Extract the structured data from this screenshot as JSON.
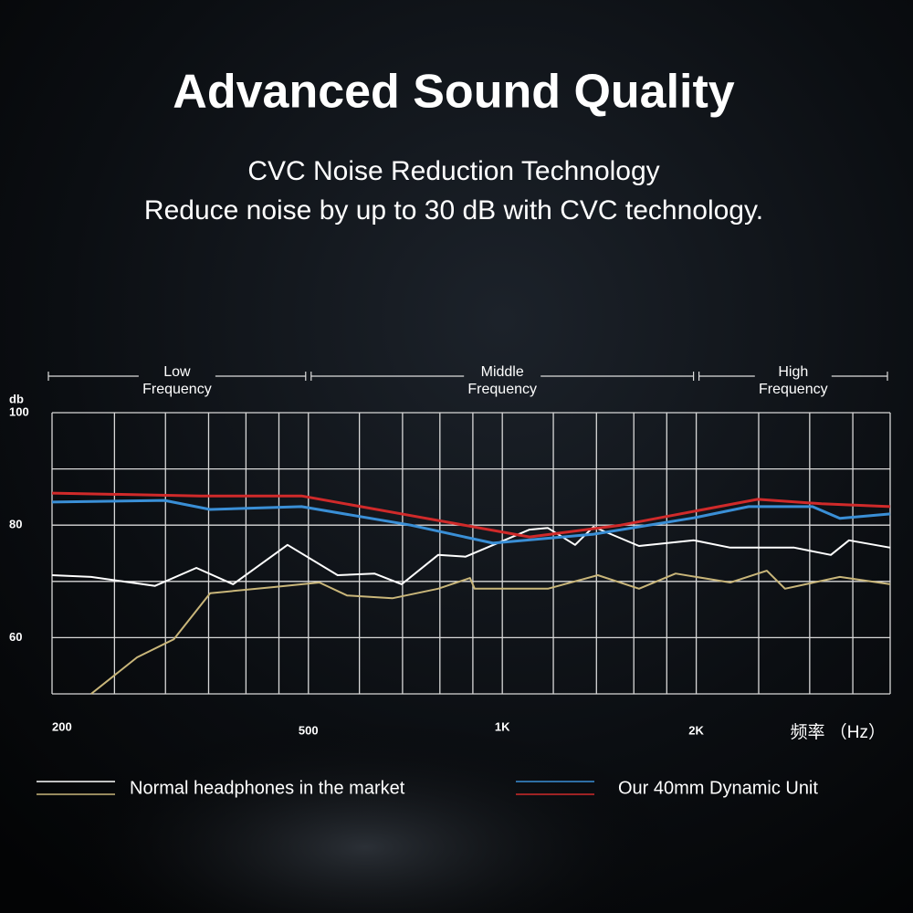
{
  "chart_data": {
    "type": "line",
    "title": "Advanced Sound Quality",
    "subtitle": [
      "CVC Noise Reduction Technology",
      "Reduce noise by up to 30 dB with CVC technology."
    ],
    "y_label": "db",
    "x_label": "频率 （Hz）",
    "log_x": true,
    "xlim": [
      200,
      4000
    ],
    "xticks": [
      200,
      500,
      {
        "value": 1000,
        "label": "1K"
      },
      {
        "value": 2000,
        "label": "2K"
      }
    ],
    "xgrid": [
      200,
      250,
      300,
      350,
      400,
      450,
      500,
      600,
      700,
      800,
      900,
      1000,
      1200,
      1400,
      1600,
      1800,
      2000,
      2500,
      3000,
      3500,
      4000
    ],
    "ylim": [
      50,
      100
    ],
    "yticks": [
      100,
      80,
      60
    ],
    "ygrid": [
      50,
      60,
      70,
      80,
      90,
      100
    ],
    "grid": true,
    "bands": [
      {
        "label": [
          "Low",
          "Frequency"
        ],
        "range": [
          200,
          500
        ]
      },
      {
        "label": [
          "Middle",
          "Frequency"
        ],
        "range": [
          500,
          2000
        ]
      },
      {
        "label": [
          "High",
          "Frequency"
        ],
        "range": [
          2000,
          4000
        ]
      }
    ],
    "series": [
      {
        "color": "#ffffff",
        "x": [
          200,
          230,
          289,
          335,
          382,
          464,
          555,
          633,
          698,
          795,
          877,
          1102,
          1177,
          1297,
          1385,
          1630,
          1983,
          2259,
          2839,
          3235,
          3453,
          4000
        ],
        "values": [
          71.1,
          70.8,
          69.2,
          72.4,
          69.5,
          76.5,
          71.1,
          71.4,
          69.5,
          74.7,
          74.4,
          79.2,
          79.5,
          76.5,
          79.7,
          76.3,
          77.3,
          76,
          76,
          74.7,
          77.3,
          76
        ]
      },
      {
        "color": "#c9b67a",
        "x": [
          230,
          271,
          309,
          352,
          442,
          520,
          574,
          675,
          795,
          891,
          906,
          1177,
          1407,
          1630,
          1858,
          2259,
          2574,
          2747,
          3342,
          4000
        ],
        "values": [
          50,
          56.5,
          59.7,
          67.9,
          69,
          69.8,
          67.5,
          67,
          68.7,
          70.6,
          68.7,
          68.7,
          71.1,
          68.7,
          71.4,
          69.8,
          71.9,
          68.7,
          70.8,
          69.5
        ]
      },
      {
        "color": "#3a8fd6",
        "x": [
          200,
          299,
          352,
          488,
          721,
          967,
          1385,
          1983,
          2412,
          3030,
          3342,
          4000
        ],
        "values": [
          84.1,
          84.4,
          82.8,
          83.3,
          80,
          76.8,
          78.4,
          81.3,
          83.3,
          83.3,
          81.2,
          82
        ]
      },
      {
        "color": "#d02a2a",
        "x": [
          200,
          340,
          488,
          721,
          1102,
          1527,
          2491,
          3131,
          4000
        ],
        "values": [
          85.7,
          85.2,
          85.2,
          81.7,
          77.9,
          80,
          84.6,
          83.8,
          83.3
        ]
      }
    ],
    "legend": [
      {
        "label": "Normal headphones in the market",
        "series": [
          0,
          1
        ]
      },
      {
        "label": "Our 40mm Dynamic Unit",
        "series": [
          2,
          3
        ]
      }
    ]
  }
}
